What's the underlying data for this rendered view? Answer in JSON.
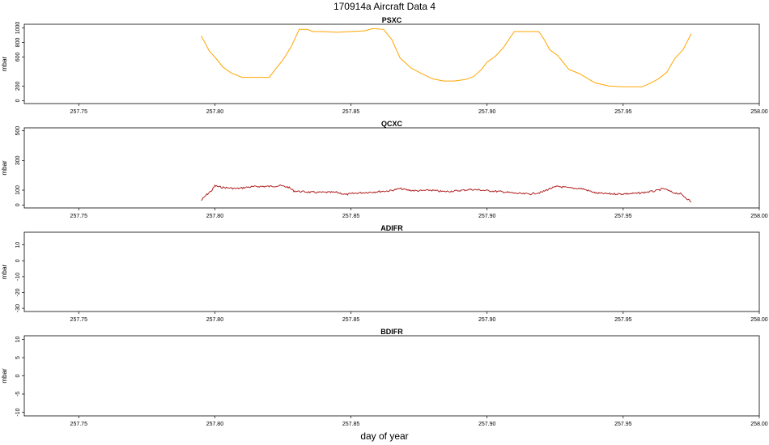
{
  "figure": {
    "title": "170914a    Aircraft Data 4",
    "xlabel": "day of year"
  },
  "chart_data": [
    {
      "type": "line",
      "title": "PSXC",
      "ylabel": "mbar",
      "xlim": [
        257.73,
        258.0
      ],
      "ylim": [
        -40,
        1050
      ],
      "x_ticks": [
        "257.75",
        "257.80",
        "257.85",
        "257.90",
        "257.95",
        "258.00"
      ],
      "y_ticks": [
        "0",
        "200",
        "600",
        "800",
        "1000"
      ],
      "color": "#FFA500",
      "series": [
        {
          "x": [
            257.795,
            257.796,
            257.798,
            257.8,
            257.803,
            257.806,
            257.81,
            257.815,
            257.82,
            257.822,
            257.825,
            257.828,
            257.831,
            257.834,
            257.836,
            257.84,
            257.845,
            257.85,
            257.855,
            257.858,
            257.862,
            257.865,
            257.868,
            257.872,
            257.876,
            257.88,
            257.884,
            257.888,
            257.892,
            257.895,
            257.898,
            257.9,
            257.903,
            257.906,
            257.91,
            257.913,
            257.918,
            257.919,
            257.921,
            257.923,
            257.926,
            257.93,
            257.934,
            257.938,
            257.94,
            257.945,
            257.95,
            257.955,
            257.957,
            257.96,
            257.963,
            257.966,
            257.969,
            257.972,
            257.975
          ],
          "y": [
            890,
            820,
            680,
            600,
            460,
            380,
            320,
            320,
            320,
            420,
            560,
            740,
            980,
            980,
            950,
            950,
            940,
            950,
            960,
            990,
            980,
            840,
            590,
            450,
            370,
            300,
            270,
            270,
            290,
            330,
            430,
            530,
            610,
            730,
            950,
            950,
            950,
            950,
            840,
            700,
            620,
            430,
            370,
            280,
            240,
            200,
            190,
            190,
            190,
            240,
            300,
            390,
            580,
            700,
            920
          ]
        }
      ]
    },
    {
      "type": "line",
      "title": "QCXC",
      "ylabel": "mbar",
      "xlim": [
        257.73,
        258.0
      ],
      "ylim": [
        -20,
        520
      ],
      "x_ticks": [
        "257.75",
        "257.80",
        "257.85",
        "257.90",
        "257.95",
        "258.00"
      ],
      "y_ticks": [
        "0",
        "100",
        "300",
        "500"
      ],
      "color": "#B22222",
      "series": [
        {
          "x": [
            257.795,
            257.797,
            257.799,
            257.8,
            257.802,
            257.805,
            257.808,
            257.812,
            257.816,
            257.82,
            257.824,
            257.827,
            257.829,
            257.832,
            257.836,
            257.84,
            257.845,
            257.848,
            257.852,
            257.856,
            257.86,
            257.864,
            257.868,
            257.871,
            257.875,
            257.879,
            257.884,
            257.889,
            257.894,
            257.898,
            257.901,
            257.905,
            257.91,
            257.913,
            257.916,
            257.92,
            257.923,
            257.926,
            257.93,
            257.935,
            257.94,
            257.945,
            257.95,
            257.955,
            257.958,
            257.962,
            257.965,
            257.968,
            257.971,
            257.973,
            257.975
          ],
          "y": [
            30,
            70,
            100,
            130,
            120,
            115,
            110,
            120,
            125,
            125,
            130,
            120,
            95,
            90,
            85,
            85,
            85,
            70,
            80,
            85,
            90,
            95,
            110,
            100,
            95,
            100,
            90,
            95,
            105,
            100,
            95,
            90,
            80,
            75,
            75,
            85,
            110,
            125,
            115,
            110,
            80,
            75,
            75,
            78,
            85,
            95,
            110,
            85,
            75,
            50,
            20
          ]
        }
      ]
    },
    {
      "type": "line",
      "title": "ADIFR",
      "ylabel": "mbar",
      "xlim": [
        257.73,
        258.0
      ],
      "ylim": [
        -32,
        18
      ],
      "x_ticks": [
        "257.75",
        "257.80",
        "257.85",
        "257.90",
        "257.95",
        "258.00"
      ],
      "y_ticks": [
        "-30",
        "-20",
        "-10",
        "0",
        "10"
      ],
      "series": []
    },
    {
      "type": "line",
      "title": "BDIFR",
      "ylabel": "mbar",
      "xlim": [
        257.73,
        258.0
      ],
      "ylim": [
        -11,
        11
      ],
      "x_ticks": [
        "257.75",
        "257.80",
        "257.85",
        "257.90",
        "257.95",
        "258.00"
      ],
      "y_ticks": [
        "-10",
        "-5",
        "0",
        "5",
        "10"
      ],
      "series": []
    }
  ]
}
